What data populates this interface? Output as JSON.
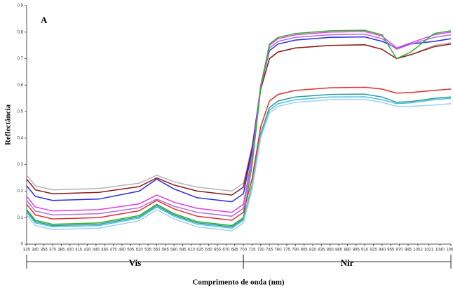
{
  "chart_data": {
    "type": "line",
    "panel_label": "A",
    "xlabel": "Comprimento de onda (nm)",
    "ylabel": "Reflectância",
    "x": [
      325,
      340,
      370,
      450,
      520,
      550,
      580,
      620,
      680,
      700,
      715,
      730,
      745,
      760,
      790,
      850,
      910,
      940,
      965,
      990,
      1030,
      1059
    ],
    "xlim": [
      325,
      1059
    ],
    "xticks": [
      325,
      340,
      355,
      370,
      385,
      400,
      415,
      430,
      445,
      460,
      475,
      490,
      505,
      520,
      535,
      550,
      565,
      580,
      595,
      610,
      625,
      640,
      655,
      670,
      685,
      700,
      715,
      730,
      745,
      760,
      775,
      790,
      805,
      820,
      835,
      850,
      865,
      880,
      895,
      910,
      925,
      940,
      955,
      970,
      985,
      1002,
      1021,
      1040,
      1059
    ],
    "ylim": [
      0,
      0.9
    ],
    "yticks": [
      0,
      0.1,
      0.2,
      0.3,
      0.4,
      0.5,
      0.6,
      0.7,
      0.8,
      0.9
    ],
    "regions": [
      {
        "label": "Vis",
        "range": [
          325,
          700
        ]
      },
      {
        "label": "Nir",
        "range": [
          700,
          1059
        ]
      }
    ],
    "series": [
      {
        "color": "#b4b4b4",
        "values": [
          0.26,
          0.22,
          0.205,
          0.21,
          0.23,
          0.26,
          0.235,
          0.215,
          0.2,
          0.23,
          0.372,
          0.588,
          0.7,
          0.725,
          0.74,
          0.75,
          0.753,
          0.735,
          0.7,
          0.715,
          0.75,
          0.76
        ]
      },
      {
        "color": "#8b1a1a",
        "values": [
          0.245,
          0.205,
          0.19,
          0.195,
          0.217,
          0.25,
          0.223,
          0.2,
          0.185,
          0.215,
          0.362,
          0.584,
          0.7,
          0.725,
          0.74,
          0.75,
          0.752,
          0.735,
          0.7,
          0.715,
          0.745,
          0.755
        ]
      },
      {
        "color": "#2a2ae0",
        "values": [
          0.22,
          0.18,
          0.165,
          0.17,
          0.2,
          0.245,
          0.208,
          0.175,
          0.16,
          0.19,
          0.353,
          0.597,
          0.73,
          0.755,
          0.77,
          0.78,
          0.782,
          0.765,
          0.74,
          0.755,
          0.765,
          0.775
        ]
      },
      {
        "color": "#e040e0",
        "values": [
          0.18,
          0.14,
          0.125,
          0.13,
          0.152,
          0.185,
          0.158,
          0.135,
          0.12,
          0.15,
          0.331,
          0.599,
          0.75,
          0.775,
          0.79,
          0.8,
          0.802,
          0.785,
          0.74,
          0.76,
          0.79,
          0.8
        ]
      },
      {
        "color": "#b070e0",
        "values": [
          0.165,
          0.125,
          0.11,
          0.115,
          0.137,
          0.17,
          0.143,
          0.12,
          0.105,
          0.135,
          0.318,
          0.588,
          0.74,
          0.765,
          0.78,
          0.79,
          0.792,
          0.775,
          0.735,
          0.755,
          0.78,
          0.79
        ]
      },
      {
        "color": "#30b030",
        "values": [
          0.13,
          0.09,
          0.075,
          0.08,
          0.108,
          0.15,
          0.115,
          0.085,
          0.07,
          0.1,
          0.298,
          0.588,
          0.755,
          0.78,
          0.795,
          0.805,
          0.807,
          0.79,
          0.7,
          0.725,
          0.795,
          0.805
        ]
      },
      {
        "color": "#e03030",
        "values": [
          0.15,
          0.11,
          0.095,
          0.1,
          0.126,
          0.165,
          0.133,
          0.105,
          0.09,
          0.12,
          0.247,
          0.443,
          0.54,
          0.565,
          0.58,
          0.59,
          0.592,
          0.585,
          0.57,
          0.572,
          0.58,
          0.585
        ]
      },
      {
        "color": "#2a9a9a",
        "values": [
          0.125,
          0.085,
          0.07,
          0.075,
          0.103,
          0.145,
          0.11,
          0.08,
          0.065,
          0.095,
          0.222,
          0.418,
          0.515,
          0.54,
          0.555,
          0.565,
          0.566,
          0.555,
          0.535,
          0.538,
          0.55,
          0.555
        ]
      },
      {
        "color": "#50c0e0",
        "values": [
          0.12,
          0.08,
          0.065,
          0.07,
          0.098,
          0.14,
          0.105,
          0.075,
          0.06,
          0.09,
          0.216,
          0.41,
          0.505,
          0.53,
          0.545,
          0.555,
          0.556,
          0.545,
          0.53,
          0.533,
          0.545,
          0.55
        ]
      },
      {
        "color": "#a0d0f0",
        "values": [
          0.11,
          0.07,
          0.055,
          0.06,
          0.088,
          0.13,
          0.095,
          0.065,
          0.05,
          0.08,
          0.206,
          0.4,
          0.495,
          0.52,
          0.535,
          0.545,
          0.546,
          0.535,
          0.52,
          0.52,
          0.525,
          0.53
        ]
      }
    ]
  }
}
